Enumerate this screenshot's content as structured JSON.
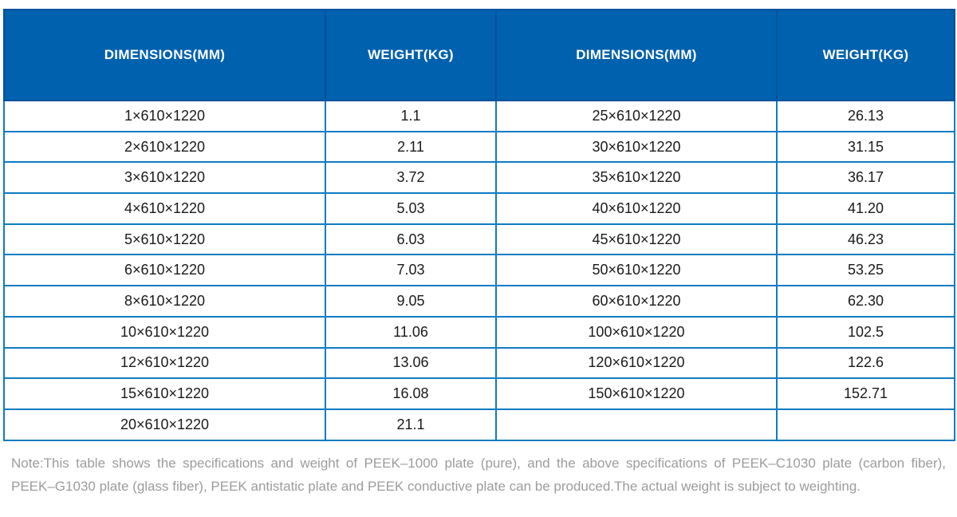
{
  "table": {
    "headers": [
      "DIMENSIONS(MM)",
      "WEIGHT(KG)",
      "DIMENSIONS(MM)",
      "WEIGHT(KG)"
    ],
    "rows": [
      [
        "1×610×1220",
        "1.1",
        "25×610×1220",
        "26.13"
      ],
      [
        "2×610×1220",
        "2.11",
        "30×610×1220",
        "31.15"
      ],
      [
        "3×610×1220",
        "3.72",
        "35×610×1220",
        "36.17"
      ],
      [
        "4×610×1220",
        "5.03",
        "40×610×1220",
        "41.20"
      ],
      [
        "5×610×1220",
        "6.03",
        "45×610×1220",
        "46.23"
      ],
      [
        "6×610×1220",
        "7.03",
        "50×610×1220",
        "53.25"
      ],
      [
        "8×610×1220",
        "9.05",
        "60×610×1220",
        "62.30"
      ],
      [
        "10×610×1220",
        "11.06",
        "100×610×1220",
        "102.5"
      ],
      [
        "12×610×1220",
        "13.06",
        "120×610×1220",
        "122.6"
      ],
      [
        "15×610×1220",
        "16.08",
        "150×610×1220",
        "152.71"
      ],
      [
        "20×610×1220",
        "21.1",
        "",
        ""
      ]
    ]
  },
  "note": {
    "line1": "Note:This table shows the specifications and weight of PEEK–1000 plate (pure), and the above specifications of PEEK–C1030 plate (carbon fiber),",
    "line2": "PEEK–G1030 plate (glass fiber), PEEK antistatic plate and PEEK conductive plate can be produced.The actual weight is subject to weighting."
  },
  "colors": {
    "header_background": "#0061ae",
    "header_border": "#03519c",
    "header_text": "#ffffff",
    "body_border": "#0e7cc2",
    "body_text": "#1a1a1a",
    "note_text": "#9c9c9c",
    "page_background": "#ffffff"
  }
}
